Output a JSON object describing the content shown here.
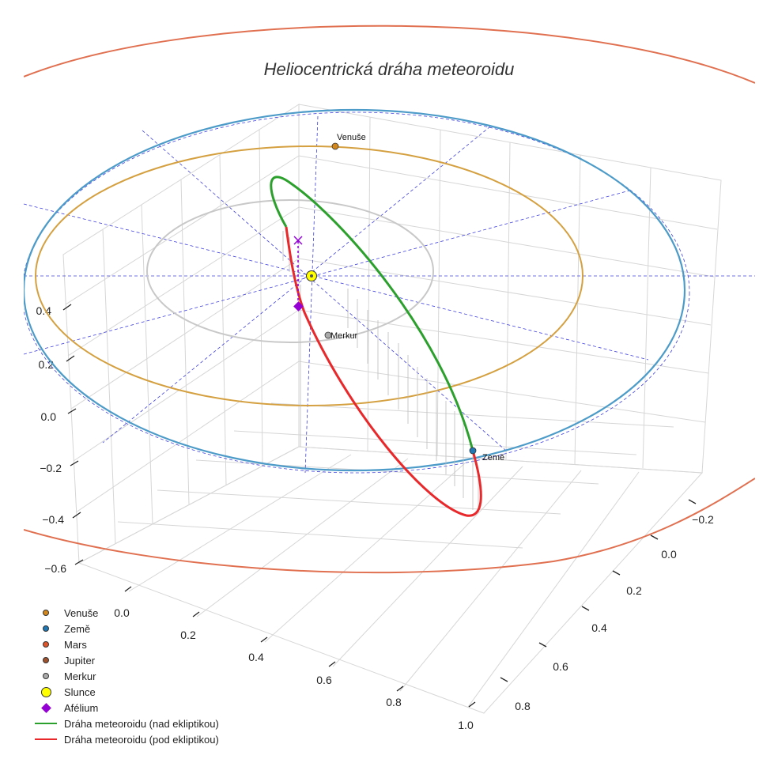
{
  "title": "Heliocentrická dráha meteoroidu",
  "colors": {
    "venuse": "#d4871a",
    "zeme": "#1f77b4",
    "mars": "#e0552a",
    "jupiter": "#a0522d",
    "merkur": "#aaaaaa",
    "slunce": "#ffff00",
    "afelium": "#9400d3",
    "nad": "#2ca02c",
    "pod": "#e8282a",
    "orbit_venuse": "#d4a040",
    "orbit_zeme": "#4c9bc8",
    "orbit_merkur": "#c8c8c8",
    "orbit_mars": "#e07050",
    "guides": "#4040dd"
  },
  "chart_data": {
    "type": "scatter3d",
    "title": "Heliocentrická dráha meteoroidu",
    "x_ticks": [
      "0.0",
      "0.2",
      "0.4",
      "0.6",
      "0.8",
      "1.0"
    ],
    "y_ticks": [
      "−0.2",
      "0.0",
      "0.2",
      "0.4",
      "0.6",
      "0.8"
    ],
    "z_ticks": [
      "0.4",
      "0.2",
      "0.0",
      "−0.2",
      "−0.4",
      "−0.6"
    ],
    "planet_labels": {
      "venuse": "Venuše",
      "zeme": "Země",
      "merkur": "Merkur"
    },
    "legend": [
      {
        "key": "venuse",
        "label": "Venuše",
        "symbol": "dot"
      },
      {
        "key": "zeme",
        "label": "Země",
        "symbol": "dot"
      },
      {
        "key": "mars",
        "label": "Mars",
        "symbol": "dot"
      },
      {
        "key": "jupiter",
        "label": "Jupiter",
        "symbol": "dot"
      },
      {
        "key": "merkur",
        "label": "Merkur",
        "symbol": "dot"
      },
      {
        "key": "slunce",
        "label": "Slunce",
        "symbol": "sun"
      },
      {
        "key": "afelium",
        "label": "Afélium",
        "symbol": "diamond"
      },
      {
        "key": "nad",
        "label": "Dráha meteoroidu (nad ekliptikou)",
        "symbol": "line"
      },
      {
        "key": "pod",
        "label": "Dráha meteoroidu (pod ekliptikou)",
        "symbol": "line"
      }
    ],
    "orbits_semi_major_au": {
      "merkur": 0.387,
      "venuse": 0.723,
      "zeme": 1.0,
      "mars": 1.524
    },
    "meteoroid_orbit": {
      "aphelion_au": 0.45,
      "perihelion_au": 1.0,
      "inclination_deg": 55
    }
  }
}
